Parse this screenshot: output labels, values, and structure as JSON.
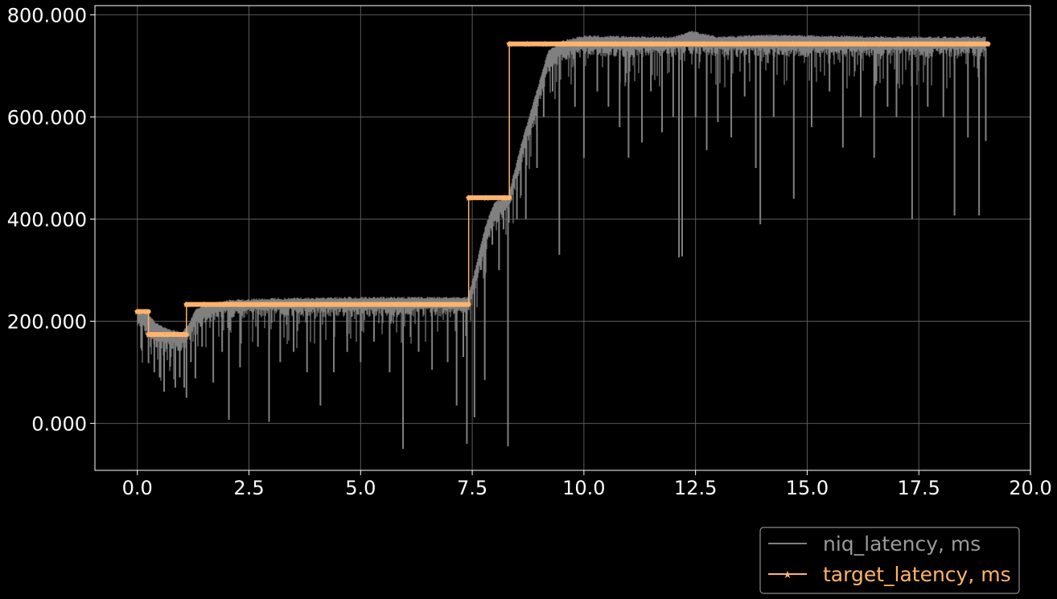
{
  "chart_data": {
    "type": "line",
    "title": "",
    "xlabel": "",
    "ylabel": "",
    "xlim": [
      -0.95,
      20.0
    ],
    "ylim": [
      -92,
      818
    ],
    "grid": true,
    "legend_placement": "below-right",
    "background": "#000000",
    "x_ticks": [
      0.0,
      2.5,
      5.0,
      7.5,
      10.0,
      12.5,
      15.0,
      17.5,
      20.0
    ],
    "x_tick_labels": [
      "0.0",
      "2.5",
      "5.0",
      "7.5",
      "10.0",
      "12.5",
      "15.0",
      "17.5",
      "20.0"
    ],
    "y_ticks": [
      0,
      200,
      400,
      600,
      800
    ],
    "y_tick_labels": [
      "0.000",
      "200.000",
      "400.000",
      "600.000",
      "800.000"
    ],
    "series": [
      {
        "name": "niq_latency, ms",
        "color": "#808080",
        "marker": "none",
        "envelope": [
          {
            "x": 0.0,
            "top": 220,
            "base": 200
          },
          {
            "x": 0.25,
            "top": 215,
            "base": 190
          },
          {
            "x": 0.4,
            "top": 200,
            "base": 165
          },
          {
            "x": 0.7,
            "top": 185,
            "base": 160
          },
          {
            "x": 1.0,
            "top": 180,
            "base": 158
          },
          {
            "x": 1.15,
            "top": 195,
            "base": 170
          },
          {
            "x": 1.3,
            "top": 225,
            "base": 200
          },
          {
            "x": 1.6,
            "top": 235,
            "base": 215
          },
          {
            "x": 2.0,
            "top": 242,
            "base": 222
          },
          {
            "x": 3.0,
            "top": 246,
            "base": 226
          },
          {
            "x": 5.0,
            "top": 248,
            "base": 226
          },
          {
            "x": 7.0,
            "top": 248,
            "base": 226
          },
          {
            "x": 7.4,
            "top": 248,
            "base": 226
          },
          {
            "x": 7.5,
            "top": 280,
            "base": 250
          },
          {
            "x": 7.8,
            "top": 390,
            "base": 360
          },
          {
            "x": 8.0,
            "top": 435,
            "base": 405
          },
          {
            "x": 8.3,
            "top": 445,
            "base": 425
          },
          {
            "x": 8.6,
            "top": 550,
            "base": 520
          },
          {
            "x": 8.9,
            "top": 640,
            "base": 610
          },
          {
            "x": 9.2,
            "top": 730,
            "base": 700
          },
          {
            "x": 9.5,
            "top": 750,
            "base": 725
          },
          {
            "x": 10.0,
            "top": 760,
            "base": 735
          },
          {
            "x": 12.0,
            "top": 758,
            "base": 735
          },
          {
            "x": 12.4,
            "top": 770,
            "base": 740
          },
          {
            "x": 13.0,
            "top": 758,
            "base": 735
          },
          {
            "x": 14.0,
            "top": 762,
            "base": 735
          },
          {
            "x": 17.0,
            "top": 758,
            "base": 735
          },
          {
            "x": 19.0,
            "top": 758,
            "base": 735
          }
        ],
        "dips": [
          [
            0.1,
            180
          ],
          [
            0.25,
            118
          ],
          [
            0.38,
            100
          ],
          [
            0.5,
            90
          ],
          [
            0.6,
            62
          ],
          [
            0.75,
            130
          ],
          [
            0.85,
            70
          ],
          [
            0.95,
            90
          ],
          [
            1.05,
            70
          ],
          [
            1.1,
            50
          ],
          [
            1.2,
            120
          ],
          [
            1.3,
            88
          ],
          [
            1.45,
            150
          ],
          [
            1.7,
            80
          ],
          [
            1.9,
            140
          ],
          [
            2.05,
            7
          ],
          [
            2.3,
            110
          ],
          [
            2.7,
            150
          ],
          [
            2.95,
            3
          ],
          [
            3.2,
            120
          ],
          [
            3.5,
            140
          ],
          [
            3.8,
            100
          ],
          [
            4.1,
            35
          ],
          [
            4.4,
            100
          ],
          [
            4.7,
            140
          ],
          [
            5.0,
            120
          ],
          [
            5.3,
            160
          ],
          [
            5.65,
            100
          ],
          [
            5.95,
            -50
          ],
          [
            6.3,
            140
          ],
          [
            6.6,
            105
          ],
          [
            6.95,
            120
          ],
          [
            7.15,
            35
          ],
          [
            7.3,
            130
          ],
          [
            7.38,
            -40
          ],
          [
            7.55,
            12
          ],
          [
            7.7,
            300
          ],
          [
            7.78,
            85
          ],
          [
            7.95,
            350
          ],
          [
            8.1,
            300
          ],
          [
            8.2,
            380
          ],
          [
            8.3,
            -45
          ],
          [
            8.5,
            400
          ],
          [
            8.7,
            400
          ],
          [
            8.95,
            500
          ],
          [
            9.1,
            600
          ],
          [
            9.3,
            650
          ],
          [
            9.45,
            330
          ],
          [
            9.8,
            620
          ],
          [
            10.0,
            520
          ],
          [
            10.3,
            650
          ],
          [
            10.55,
            620
          ],
          [
            10.8,
            580
          ],
          [
            11.0,
            520
          ],
          [
            11.3,
            550
          ],
          [
            11.5,
            650
          ],
          [
            11.75,
            570
          ],
          [
            12.0,
            600
          ],
          [
            12.13,
            325
          ],
          [
            12.2,
            327
          ],
          [
            12.5,
            600
          ],
          [
            12.75,
            535
          ],
          [
            13.0,
            590
          ],
          [
            13.3,
            560
          ],
          [
            13.6,
            640
          ],
          [
            13.85,
            500
          ],
          [
            13.95,
            390
          ],
          [
            14.25,
            600
          ],
          [
            14.7,
            440
          ],
          [
            15.1,
            580
          ],
          [
            15.5,
            650
          ],
          [
            15.8,
            540
          ],
          [
            16.2,
            600
          ],
          [
            16.5,
            520
          ],
          [
            16.8,
            620
          ],
          [
            17.0,
            600
          ],
          [
            17.35,
            400
          ],
          [
            17.7,
            620
          ],
          [
            18.05,
            600
          ],
          [
            18.3,
            407
          ],
          [
            18.6,
            560
          ],
          [
            18.85,
            407
          ],
          [
            19.0,
            553
          ]
        ]
      },
      {
        "name": "target_latency, ms",
        "color": "#FFB36B",
        "marker": "star",
        "steps": [
          {
            "x0": 0.0,
            "x1": 0.25,
            "y": 219
          },
          {
            "x0": 0.25,
            "x1": 1.1,
            "y": 174
          },
          {
            "x0": 1.1,
            "x1": 7.42,
            "y": 233
          },
          {
            "x0": 7.42,
            "x1": 8.33,
            "y": 442
          },
          {
            "x0": 8.33,
            "x1": 19.05,
            "y": 743
          }
        ]
      }
    ]
  },
  "legend": {
    "items": [
      {
        "label": "niq_latency, ms",
        "color": "#9a9a9a"
      },
      {
        "label": "target_latency, ms",
        "color": "#FFB36B"
      }
    ]
  }
}
